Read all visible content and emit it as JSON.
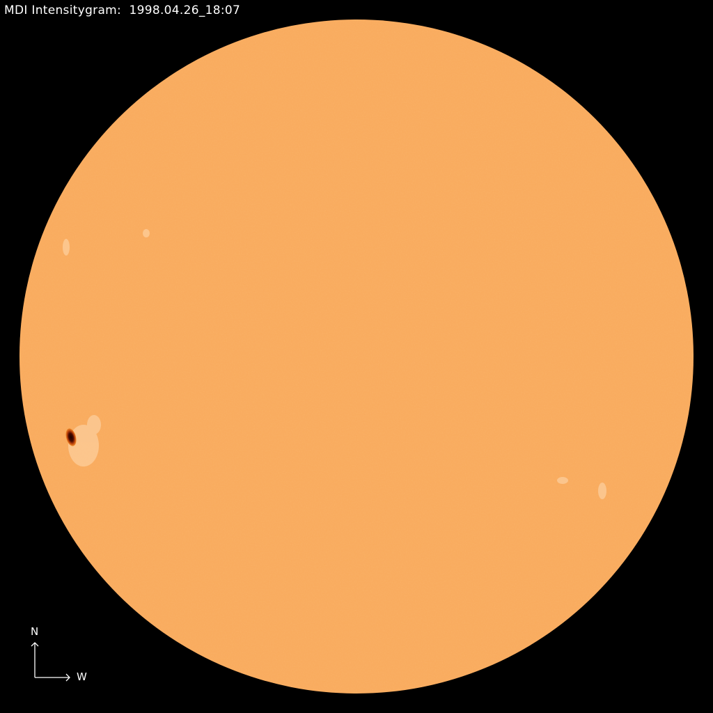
{
  "title": {
    "instrument": "MDI Intensitygram:",
    "datetime": "1998.04.26_18:07"
  },
  "compass": {
    "north_label": "N",
    "west_label": "W"
  },
  "colors": {
    "background": "#000000",
    "disk": "#f9aa5c",
    "sunspot_umbra": "#2a0500",
    "sunspot_penumbra": "#b8400a",
    "facula": "#fdd3a6"
  }
}
